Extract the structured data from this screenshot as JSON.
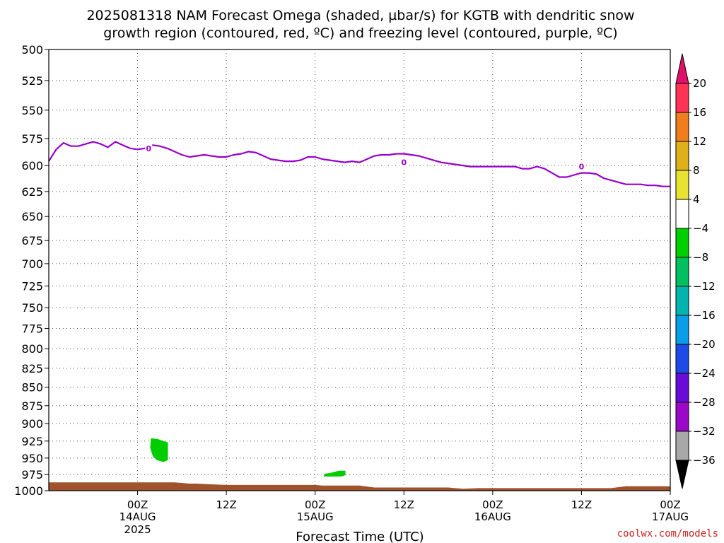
{
  "chart_data": {
    "type": "time-height",
    "title_line1": "2025081318 NAM Forecast Omega (shaded, µbar/s) for KGTB with dendritic snow",
    "title_line2": "growth region (contoured, red, ºC) and freezing level (contoured, purple, ºC)",
    "xlabel": "Forecast Time (UTC)",
    "credit": "coolwx.com/models",
    "y_axis": {
      "unit": "hPa",
      "inverted": true,
      "range": [
        500,
        1000
      ],
      "ticks": [
        500,
        525,
        550,
        575,
        600,
        625,
        650,
        675,
        700,
        725,
        750,
        775,
        800,
        825,
        850,
        875,
        900,
        925,
        950,
        975,
        1000
      ]
    },
    "x_axis": {
      "range_hours": [
        -6,
        78
      ],
      "ticks": [
        {
          "hour": 6,
          "label": "00Z",
          "date": "14AUG",
          "year": "2025"
        },
        {
          "hour": 18,
          "label": "12Z",
          "date": "",
          "year": ""
        },
        {
          "hour": 30,
          "label": "00Z",
          "date": "15AUG",
          "year": ""
        },
        {
          "hour": 42,
          "label": "12Z",
          "date": "",
          "year": ""
        },
        {
          "hour": 54,
          "label": "00Z",
          "date": "16AUG",
          "year": ""
        },
        {
          "hour": 66,
          "label": "12Z",
          "date": "",
          "year": ""
        },
        {
          "hour": 78,
          "label": "00Z",
          "date": "17AUG",
          "year": ""
        }
      ]
    },
    "grid": true,
    "freezing_level": {
      "color": "#9900cc",
      "label": "0",
      "label_points": [
        [
          7.5,
          584
        ],
        [
          42,
          597
        ],
        [
          66,
          601
        ]
      ],
      "points": [
        [
          -6,
          596
        ],
        [
          -5,
          585
        ],
        [
          -4,
          579
        ],
        [
          -3,
          582
        ],
        [
          -2,
          582
        ],
        [
          -1,
          580
        ],
        [
          0,
          578
        ],
        [
          1,
          580
        ],
        [
          2,
          583
        ],
        [
          3,
          578
        ],
        [
          4,
          581
        ],
        [
          5,
          584
        ],
        [
          6,
          585
        ],
        [
          7,
          584
        ],
        [
          8,
          581
        ],
        [
          9,
          582
        ],
        [
          10,
          584
        ],
        [
          11,
          587
        ],
        [
          12,
          590
        ],
        [
          13,
          592
        ],
        [
          14,
          591
        ],
        [
          15,
          590
        ],
        [
          16,
          591
        ],
        [
          17,
          592
        ],
        [
          18,
          592
        ],
        [
          19,
          590
        ],
        [
          20,
          589
        ],
        [
          21,
          587
        ],
        [
          22,
          588
        ],
        [
          23,
          591
        ],
        [
          24,
          594
        ],
        [
          25,
          595
        ],
        [
          26,
          596
        ],
        [
          27,
          596
        ],
        [
          28,
          595
        ],
        [
          29,
          592
        ],
        [
          30,
          592
        ],
        [
          31,
          594
        ],
        [
          32,
          595
        ],
        [
          33,
          596
        ],
        [
          34,
          597
        ],
        [
          35,
          596
        ],
        [
          36,
          597
        ],
        [
          37,
          594
        ],
        [
          38,
          591
        ],
        [
          39,
          590
        ],
        [
          40,
          590
        ],
        [
          41,
          589
        ],
        [
          42,
          589
        ],
        [
          43,
          590
        ],
        [
          44,
          591
        ],
        [
          45,
          593
        ],
        [
          46,
          595
        ],
        [
          47,
          597
        ],
        [
          48,
          598
        ],
        [
          49,
          599
        ],
        [
          50,
          600
        ],
        [
          51,
          601
        ],
        [
          52,
          601
        ],
        [
          53,
          601
        ],
        [
          54,
          601
        ],
        [
          55,
          601
        ],
        [
          56,
          601
        ],
        [
          57,
          601
        ],
        [
          58,
          603
        ],
        [
          59,
          603
        ],
        [
          60,
          601
        ],
        [
          61,
          603
        ],
        [
          62,
          607
        ],
        [
          63,
          611
        ],
        [
          64,
          611
        ],
        [
          65,
          609
        ],
        [
          66,
          607
        ],
        [
          67,
          607
        ],
        [
          68,
          608
        ],
        [
          69,
          612
        ],
        [
          70,
          614
        ],
        [
          71,
          616
        ],
        [
          72,
          618
        ],
        [
          73,
          618
        ],
        [
          74,
          618
        ],
        [
          75,
          619
        ],
        [
          76,
          619
        ],
        [
          77,
          620
        ],
        [
          78,
          620
        ]
      ]
    },
    "omega_shading": [
      {
        "label": "green patch 1",
        "color": "#00cc00",
        "points": [
          [
            7.8,
            921
          ],
          [
            8.7,
            922
          ],
          [
            9.5,
            925
          ],
          [
            10.1,
            927
          ],
          [
            10.1,
            953
          ],
          [
            9.5,
            956
          ],
          [
            8.6,
            953
          ],
          [
            8.1,
            948
          ],
          [
            7.9,
            942
          ],
          [
            7.7,
            935
          ]
        ]
      },
      {
        "label": "green patch 2",
        "color": "#00cc00",
        "points": [
          [
            31.2,
            974
          ],
          [
            32.3,
            972
          ],
          [
            33.2,
            969
          ],
          [
            34.1,
            969
          ],
          [
            34.1,
            976
          ],
          [
            33.5,
            978
          ],
          [
            31.2,
            978
          ]
        ]
      }
    ],
    "terrain": {
      "color": "#a0522d",
      "points": [
        [
          -6,
          987
        ],
        [
          0,
          987
        ],
        [
          8,
          987
        ],
        [
          11,
          987
        ],
        [
          13,
          989
        ],
        [
          14,
          989
        ],
        [
          16,
          990
        ],
        [
          18,
          991
        ],
        [
          30,
          991
        ],
        [
          31,
          992
        ],
        [
          36,
          992
        ],
        [
          38,
          995
        ],
        [
          48,
          995
        ],
        [
          50,
          997
        ],
        [
          52,
          996
        ],
        [
          70,
          996
        ],
        [
          72,
          993
        ],
        [
          78,
          993
        ]
      ]
    },
    "colorbar": {
      "ticks": [
        20,
        16,
        12,
        8,
        4,
        -4,
        -8,
        -12,
        -16,
        -20,
        -24,
        -28,
        -32,
        -36
      ],
      "bands": [
        {
          "color": "#ff3355"
        },
        {
          "color": "#f07e1c"
        },
        {
          "color": "#e0b01b"
        },
        {
          "color": "#e8e230"
        },
        {
          "color": "#ffffff"
        },
        {
          "color": "#00d000"
        },
        {
          "color": "#00c060"
        },
        {
          "color": "#00b4b0"
        },
        {
          "color": "#0a9ee8"
        },
        {
          "color": "#1e4be8"
        },
        {
          "color": "#6a0cd8"
        },
        {
          "color": "#9b08c8"
        },
        {
          "color": "#a8a8a8"
        }
      ],
      "top_arrow_color": "#e0106a",
      "bottom_arrow_color": "#000000"
    }
  }
}
